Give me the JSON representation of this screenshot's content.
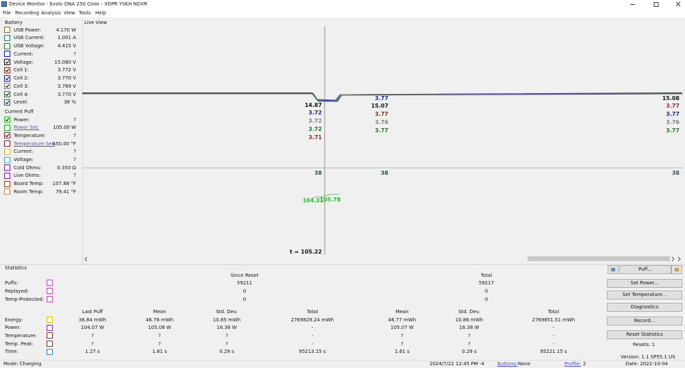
{
  "window": {
    "title": "Device Monitor - Evolv DNA 250 Color - XDPR YSKH NDXR"
  },
  "menu": [
    "File",
    "Recording",
    "Analysis",
    "View",
    "Tools",
    "Help"
  ],
  "battery": {
    "title": "Battery",
    "rows": [
      {
        "label": "USB Power:",
        "value": "4.170 W",
        "color": "#7a6a10",
        "checked": false
      },
      {
        "label": "USB Current:",
        "value": "1.001 A",
        "color": "#108080",
        "checked": false
      },
      {
        "label": "USB Voltage:",
        "value": "4.415 V",
        "color": "#108010",
        "checked": false
      },
      {
        "label": "Current:",
        "value": "?",
        "color": "#1010d0",
        "checked": false
      },
      {
        "label": "Voltage:",
        "value": "15.080 V",
        "color": "#000000",
        "checked": true
      },
      {
        "label": "Cell 1:",
        "value": "3.772 V",
        "color": "#a02020",
        "checked": true
      },
      {
        "label": "Cell 2:",
        "value": "3.770 V",
        "color": "#1a1a9a",
        "checked": true
      },
      {
        "label": "Cell 3:",
        "value": "3.769 V",
        "color": "#808080",
        "checked": true
      },
      {
        "label": "Cell 4:",
        "value": "3.770 V",
        "color": "#1a6a1a",
        "checked": true
      },
      {
        "label": "Level:",
        "value": "38 %",
        "color": "#2f4f4f",
        "checked": true
      }
    ]
  },
  "current_puff": {
    "title": "Current Puff",
    "rows": [
      {
        "label": "Power:",
        "value": "?",
        "color": "#22cc22",
        "checked": true,
        "link": false
      },
      {
        "label": "Power Set:",
        "value": "105.00 W",
        "color": "#22aa22",
        "checked": false,
        "link": true
      },
      {
        "label": "Temperature:",
        "value": "?",
        "color": "#d01010",
        "checked": true,
        "link": false
      },
      {
        "label": "Temperature Set:",
        "value": "450.00 °F",
        "color": "#a01010",
        "checked": false,
        "link": true
      },
      {
        "label": "Current:",
        "value": "?",
        "color": "#e0c000",
        "checked": false,
        "link": false
      },
      {
        "label": "Voltage:",
        "value": "?",
        "color": "#20c0c0",
        "checked": false,
        "link": false
      },
      {
        "label": "Cold Ohms:",
        "value": "0.350 Ω",
        "color": "#8020a0",
        "checked": false,
        "link": false
      },
      {
        "label": "Live Ohms:",
        "value": "?",
        "color": "#8020a0",
        "checked": false,
        "link": false
      },
      {
        "label": "Board Temp:",
        "value": "107.88 °F",
        "color": "#a04020",
        "checked": false,
        "link": false
      },
      {
        "label": "Room Temp:",
        "value": "79.41 °F",
        "color": "#d08030",
        "checked": false,
        "link": false
      }
    ]
  },
  "live_view": {
    "title": "Live View",
    "cursor_left": [
      {
        "text": "14.87",
        "color": "#111111"
      },
      {
        "text": "3.72",
        "color": "#1a1ab0"
      },
      {
        "text": "3.72",
        "color": "#808080"
      },
      {
        "text": "3.72",
        "color": "#1a7a1a"
      },
      {
        "text": "3.71",
        "color": "#a02020"
      }
    ],
    "cursor_right": [
      {
        "text": "3.77",
        "color": "#1a1ab0"
      },
      {
        "text": "15.07",
        "color": "#111111"
      },
      {
        "text": "3.77",
        "color": "#a02020"
      },
      {
        "text": "3.76",
        "color": "#808080"
      },
      {
        "text": "3.77",
        "color": "#1a7a1a"
      }
    ],
    "edge": [
      {
        "text": "15.08",
        "color": "#111111"
      },
      {
        "text": "3.77",
        "color": "#a02020"
      },
      {
        "text": "3.77",
        "color": "#1a1ab0"
      },
      {
        "text": "3.76",
        "color": "#808080"
      },
      {
        "text": "3.77",
        "color": "#1a7a1a"
      }
    ],
    "level": [
      "38",
      "38",
      "38"
    ],
    "power": [
      "104.31",
      "105.78"
    ],
    "time": "t = 105.22"
  },
  "statistics": {
    "title": "Statistics",
    "puff_columns": [
      "Since Reset",
      "Total"
    ],
    "puff_rows": [
      {
        "label": "Puffs:",
        "color": "#c050c0",
        "values": [
          "59211",
          "59217"
        ]
      },
      {
        "label": "Replayed:",
        "color": "#c050c0",
        "values": [
          "0",
          "0"
        ]
      },
      {
        "label": "Temp-Protected:",
        "color": "#c050c0",
        "values": [
          "0",
          "0"
        ]
      }
    ],
    "columns": [
      "Last Puff",
      "Mean",
      "Std. Dev.",
      "Total",
      "Mean",
      "Std. Dev.",
      "Total"
    ],
    "rows": [
      {
        "label": "Energy:",
        "color": "#e0c000",
        "values": [
          "36.84 mWh",
          "46.78 mWh",
          "10.85 mWh",
          "2769829.24 mWh",
          "46.77 mWh",
          "10.86 mWh",
          "2769851.51 mWh"
        ]
      },
      {
        "label": "Power:",
        "color": "#8030b0",
        "values": [
          "104.07 W",
          "105.08 W",
          "16.36 W",
          "-",
          "105.07 W",
          "16.38 W",
          "-"
        ]
      },
      {
        "label": "Temperature:",
        "color": "#a02020",
        "values": [
          "?",
          "?",
          "?",
          "-",
          "?",
          "?",
          "-"
        ]
      },
      {
        "label": "Temp. Peak:",
        "color": "#8a2a2a",
        "values": [
          "?",
          "?",
          "?",
          "-",
          "?",
          "?",
          "-"
        ]
      },
      {
        "label": "Time:",
        "color": "#2080e0",
        "values": [
          "1.27 s",
          "1.61 s",
          "0.29 s",
          "95213.15 s",
          "1.61 s",
          "0.29 s",
          "95221.15 s"
        ]
      }
    ]
  },
  "controls": {
    "puff": "Puff...",
    "buttons": [
      "Set Power...",
      "Set Temperature...",
      "Diagnostics",
      "Record...",
      "Reset Statistics"
    ],
    "resets": "Resets: 1",
    "version": "Version: 1.1 SP55.1 US",
    "date": "Date: 2022-10-04"
  },
  "status": {
    "mode": "Mode: Charging",
    "datetime": "2024/7/22 12:45 PM -4",
    "buttons_label": "Buttons:",
    "buttons_value": "None",
    "profile_label": "Profile:",
    "profile_value": "2"
  }
}
